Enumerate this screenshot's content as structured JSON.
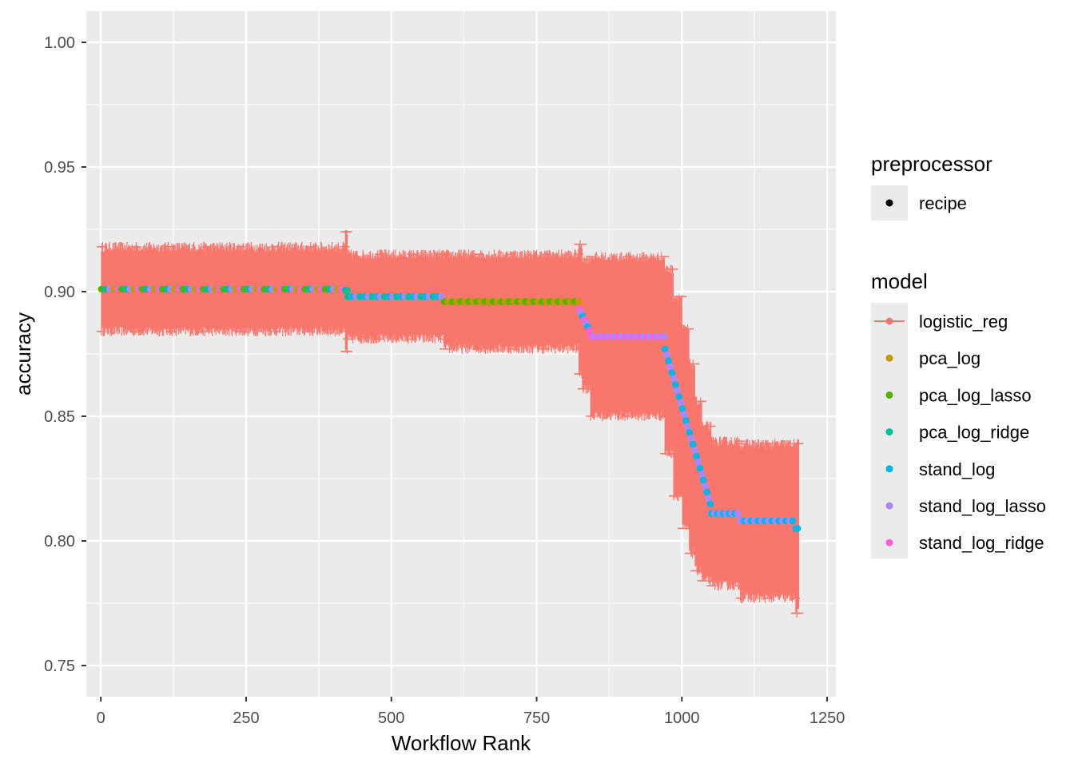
{
  "chart_data": {
    "type": "scatter",
    "title": "",
    "xlabel": "Workflow Rank",
    "ylabel": "accuracy",
    "xlim": [
      -25,
      1265
    ],
    "ylim": [
      0.7375,
      1.0125
    ],
    "xticks": [
      0,
      250,
      500,
      750,
      1000,
      1250
    ],
    "xtick_labels": [
      "0",
      "250",
      "500",
      "750",
      "1000",
      "1250"
    ],
    "yticks": [
      0.75,
      0.8,
      0.85,
      0.9,
      0.95,
      1.0
    ],
    "ytick_labels": [
      "0.75",
      "0.80",
      "0.85",
      "0.90",
      "0.95",
      "1.00"
    ],
    "grid": true,
    "legend_position": "right",
    "error_bar_color": "#F8766D",
    "ranges": [
      {
        "x0": 1,
        "x1": 420,
        "y": 0.901,
        "yerr": 0.017
      },
      {
        "x0": 421,
        "x1": 424,
        "y": 0.9,
        "yerr": 0.024
      },
      {
        "x0": 425,
        "x1": 590,
        "y": 0.898,
        "yerr": 0.017
      },
      {
        "x0": 591,
        "x1": 822,
        "y": 0.896,
        "yerr": 0.019
      },
      {
        "x0": 823,
        "x1": 828,
        "y": 0.893,
        "yerr": 0.026
      },
      {
        "x0": 829,
        "x1": 842,
        "y": 0.887,
        "yerr": 0.026
      },
      {
        "x0": 843,
        "x1": 970,
        "y": 0.882,
        "yerr": 0.032
      },
      {
        "x0": 971,
        "x1": 985,
        "y": 0.872,
        "yerr": 0.037
      },
      {
        "x0": 986,
        "x1": 1000,
        "y": 0.858,
        "yerr": 0.04
      },
      {
        "x0": 1001,
        "x1": 1012,
        "y": 0.845,
        "yerr": 0.04
      },
      {
        "x0": 1013,
        "x1": 1022,
        "y": 0.833,
        "yerr": 0.038
      },
      {
        "x0": 1023,
        "x1": 1034,
        "y": 0.822,
        "yerr": 0.034
      },
      {
        "x0": 1035,
        "x1": 1050,
        "y": 0.815,
        "yerr": 0.031
      },
      {
        "x0": 1051,
        "x1": 1100,
        "y": 0.811,
        "yerr": 0.029
      },
      {
        "x0": 1101,
        "x1": 1195,
        "y": 0.808,
        "yerr": 0.031
      },
      {
        "x0": 1196,
        "x1": 1201,
        "y": 0.805,
        "yerr": 0.034
      }
    ],
    "points_segments": [
      {
        "x0": 1,
        "x1": 420,
        "y0": 0.901,
        "y1": 0.901,
        "step": 7,
        "models": [
          "pca_log_lasso",
          "pca_log_ridge",
          "stand_log_lasso",
          "pca_log",
          "stand_log_ridge"
        ]
      },
      {
        "x0": 421,
        "x1": 424,
        "y0": 0.9005,
        "y1": 0.9005,
        "step": 3,
        "models": [
          "pca_log_ridge"
        ]
      },
      {
        "x0": 425,
        "x1": 590,
        "y0": 0.898,
        "y1": 0.898,
        "step": 7,
        "models": [
          "pca_log_ridge",
          "stand_log",
          "stand_log_lasso"
        ]
      },
      {
        "x0": 591,
        "x1": 822,
        "y0": 0.896,
        "y1": 0.896,
        "step": 7,
        "models": [
          "pca_log_lasso",
          "pca_log"
        ]
      },
      {
        "x0": 823,
        "x1": 842,
        "y0": 0.893,
        "y1": 0.884,
        "step": 3,
        "models": [
          "stand_log_ridge",
          "stand_log_lasso",
          "stand_log"
        ]
      },
      {
        "x0": 843,
        "x1": 970,
        "y0": 0.882,
        "y1": 0.882,
        "step": 6,
        "models": [
          "stand_log_ridge",
          "stand_log_lasso"
        ]
      },
      {
        "x0": 971,
        "x1": 1050,
        "y0": 0.877,
        "y1": 0.814,
        "step": 3,
        "models": [
          "stand_log",
          "stand_log_lasso"
        ]
      },
      {
        "x0": 1051,
        "x1": 1100,
        "y0": 0.811,
        "y1": 0.811,
        "step": 5,
        "models": [
          "stand_log",
          "stand_log_lasso"
        ]
      },
      {
        "x0": 1101,
        "x1": 1195,
        "y0": 0.808,
        "y1": 0.808,
        "step": 6,
        "models": [
          "stand_log_lasso",
          "stand_log"
        ]
      },
      {
        "x0": 1196,
        "x1": 1201,
        "y0": 0.805,
        "y1": 0.805,
        "step": 3,
        "models": [
          "stand_log"
        ]
      }
    ]
  },
  "legend": {
    "preprocessor": {
      "title": "preprocessor",
      "items": [
        {
          "label": "recipe",
          "color": "#000000"
        }
      ]
    },
    "model": {
      "title": "model",
      "items": [
        {
          "label": "logistic_reg",
          "key": "logistic_reg",
          "color": "#F8766D"
        },
        {
          "label": "pca_log",
          "key": "pca_log",
          "color": "#C49A00"
        },
        {
          "label": "pca_log_lasso",
          "key": "pca_log_lasso",
          "color": "#53B400"
        },
        {
          "label": "pca_log_ridge",
          "key": "pca_log_ridge",
          "color": "#00C094"
        },
        {
          "label": "stand_log",
          "key": "stand_log",
          "color": "#00B6EB"
        },
        {
          "label": "stand_log_lasso",
          "key": "stand_log_lasso",
          "color": "#A58AFF"
        },
        {
          "label": "stand_log_ridge",
          "key": "stand_log_ridge",
          "color": "#FB61D7"
        }
      ]
    }
  },
  "colors": {
    "panel_background": "#EBEBEB",
    "grid_major": "#FFFFFF",
    "tick_text": "#4D4D4D"
  }
}
